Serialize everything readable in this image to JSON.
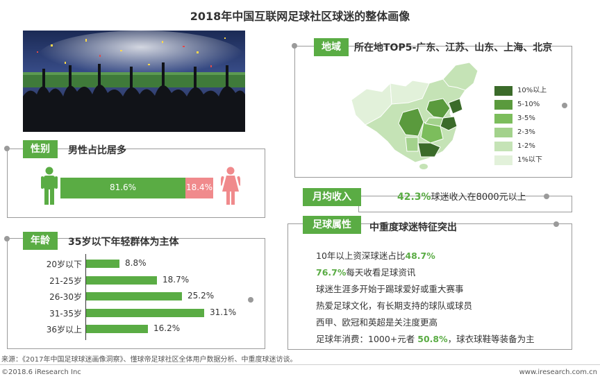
{
  "title": "2018年中国互联网足球社区球迷的整体画像",
  "gender": {
    "badge": "性别",
    "heading": "男性占比居多",
    "male_pct_label": "81.6%",
    "female_pct_label": "18.4%",
    "male_value": 81.6,
    "female_value": 18.4,
    "male_color": "#5aac44",
    "female_color": "#f08a8c"
  },
  "age": {
    "badge": "年龄",
    "heading": "35岁以下年轻群体为主体"
  },
  "chart_data": {
    "type": "bar",
    "orientation": "horizontal",
    "categories": [
      "20岁以下",
      "21-25岁",
      "26-30岁",
      "31-35岁",
      "36岁以上"
    ],
    "values": [
      8.8,
      18.7,
      25.2,
      31.1,
      16.2
    ],
    "value_labels": [
      "8.8%",
      "18.7%",
      "25.2%",
      "31.1%",
      "16.2%"
    ],
    "color": "#5aac44",
    "xlim": [
      0,
      31.1
    ]
  },
  "region": {
    "badge": "地域",
    "heading": "所在地TOP5-广东、江苏、山东、上海、北京",
    "legend": [
      {
        "label": "10%以上",
        "color": "#3b6b2a"
      },
      {
        "label": "5-10%",
        "color": "#5a9a3d"
      },
      {
        "label": "3-5%",
        "color": "#7cbd5c"
      },
      {
        "label": "2-3%",
        "color": "#a3d28c"
      },
      {
        "label": "1-2%",
        "color": "#c5e3b6"
      },
      {
        "label": "1%以下",
        "color": "#e2f1da"
      }
    ]
  },
  "income": {
    "badge": "月均收入",
    "value": "42.3%",
    "text": "球迷收入在8000元以上"
  },
  "traits": {
    "badge": "足球属性",
    "heading": "中重度球迷特征突出",
    "line1_text": "10年以上资深球迷占比",
    "line1_value": "48.7%",
    "line2_value": "76.7%",
    "line2_text": "每天收看足球资讯",
    "line3": "球迷生涯多开始于踢球爱好或重大赛事",
    "line4": "热爱足球文化，有长期支持的球队或球员",
    "line5": "西甲、欧冠和英超是关注度更高",
    "line6_text_a": "足球年消费：1000+元者 ",
    "line6_value": "50.8%",
    "line6_text_b": "，球衣球鞋等装备为主"
  },
  "footer": {
    "source": "来源：《2017年中国足球球迷画像洞察》、懂球帝足球社区全体用户数据分析、中重度球迷访谈。",
    "copyright": "©2018.6 iResearch Inc",
    "site": "www.iresearch.com.cn"
  }
}
